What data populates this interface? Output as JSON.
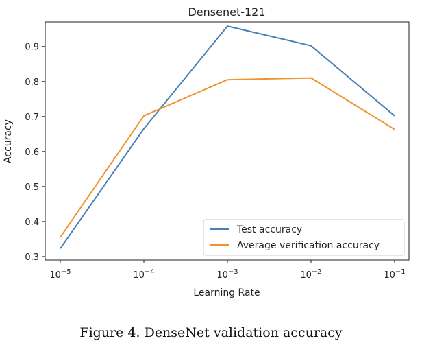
{
  "chart_data": {
    "type": "line",
    "title": "Densenet-121",
    "xlabel": "Learning Rate",
    "ylabel": "Accuracy",
    "x_scale": "log",
    "x": [
      1e-05,
      0.0001,
      0.001,
      0.01,
      0.1
    ],
    "x_ticks": [
      {
        "base": "10",
        "exp": "−5"
      },
      {
        "base": "10",
        "exp": "−4"
      },
      {
        "base": "10",
        "exp": "−3"
      },
      {
        "base": "10",
        "exp": "−2"
      },
      {
        "base": "10",
        "exp": "−1"
      }
    ],
    "y_ticks": [
      "0.3",
      "0.4",
      "0.5",
      "0.6",
      "0.7",
      "0.8",
      "0.9"
    ],
    "ylim": [
      0.29,
      0.97
    ],
    "grid": false,
    "legend": "lower right",
    "series": [
      {
        "name": "Test accuracy",
        "color": "#4a7fb3",
        "values": [
          0.323,
          0.665,
          0.958,
          0.902,
          0.702
        ]
      },
      {
        "name": "Average verification accuracy",
        "color": "#f0922d",
        "values": [
          0.355,
          0.702,
          0.805,
          0.81,
          0.663
        ]
      }
    ]
  },
  "caption": "Figure 4.  DenseNet validation accuracy"
}
